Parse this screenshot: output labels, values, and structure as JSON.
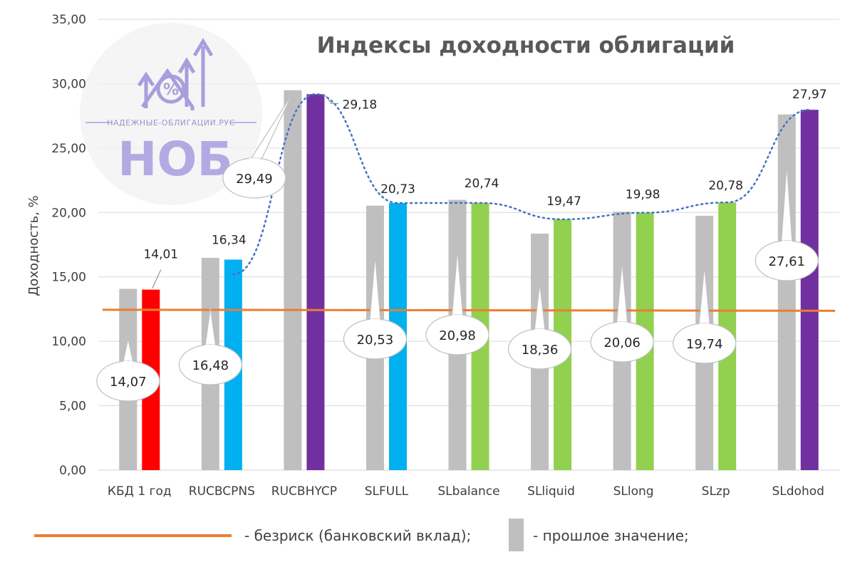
{
  "chart_data": {
    "type": "bar",
    "title": "Индексы доходности облигаций",
    "ylabel": "Доходность, %",
    "ylim": [
      0,
      35
    ],
    "yticks": [
      "0,00",
      "5,00",
      "10,00",
      "15,00",
      "20,00",
      "25,00",
      "30,00",
      "35,00"
    ],
    "grid": true,
    "categories": [
      "КБД 1 год",
      "RUCBCPNS",
      "RUCBHYCP",
      "SLFULL",
      "SLbalance",
      "SLliquid",
      "SLlong",
      "SLzp",
      "SLdohod"
    ],
    "series": [
      {
        "name": "- прошлое значение;",
        "color": "#bfbfbf",
        "values": [
          14.07,
          16.48,
          29.49,
          20.53,
          20.98,
          18.36,
          20.06,
          19.74,
          27.61
        ],
        "labels": [
          "14,07",
          "16,48",
          "29,49",
          "20,53",
          "20,98",
          "18,36",
          "20,06",
          "19,74",
          "27,61"
        ]
      },
      {
        "values": [
          14.01,
          16.34,
          29.18,
          20.73,
          20.74,
          19.47,
          19.98,
          20.78,
          27.97
        ],
        "labels": [
          "14,01",
          "16,34",
          "29,18",
          "20,73",
          "20,74",
          "19,47",
          "19,98",
          "20,78",
          "27,97"
        ],
        "colors": [
          "#ff0000",
          "#00b0f0",
          "#7030a0",
          "#00b0f0",
          "#92d050",
          "#92d050",
          "#92d050",
          "#92d050",
          "#7030a0"
        ]
      }
    ],
    "risk_free": {
      "name": "- безриск (банковский вклад);",
      "value": 12.45,
      "color": "#ed7d31"
    },
    "trend_line": {
      "style": "dotted",
      "color": "#4472c4"
    }
  },
  "watermark": {
    "site": "НАДЕЖНЫЕ-ОБЛИГАЦИИ.РУС",
    "brand": "НОБ"
  }
}
